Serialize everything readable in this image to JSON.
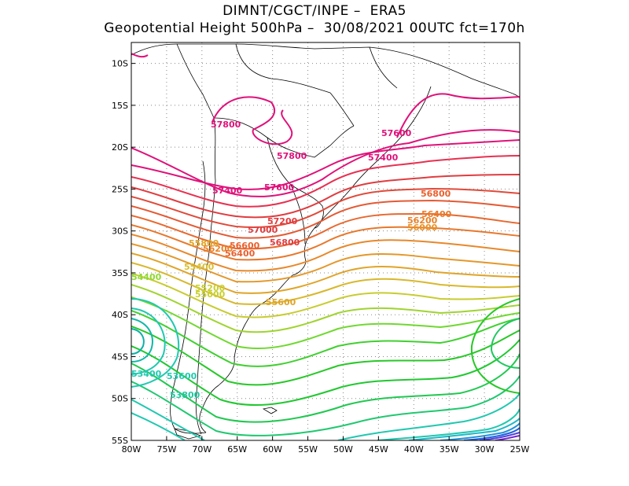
{
  "title": {
    "line1": "DIMNT/CGCT/INPE –  ERA5",
    "line2": "Geopotential Height 500hPa –  30/08/2021 00UTC fct=170h"
  },
  "axes": {
    "lon_labels": [
      "80W",
      "75W",
      "70W",
      "65W",
      "60W",
      "55W",
      "50W",
      "45W",
      "40W",
      "35W",
      "30W",
      "25W"
    ],
    "lat_labels": [
      "10S",
      "15S",
      "20S",
      "25S",
      "30S",
      "35S",
      "40S",
      "45S",
      "50S",
      "55S"
    ]
  },
  "contour_labels": [
    {
      "text": "57800",
      "color": "#e0117a"
    },
    {
      "text": "57800",
      "color": "#e0117a"
    },
    {
      "text": "57600",
      "color": "#e0117a"
    },
    {
      "text": "57600",
      "color": "#e0117a"
    },
    {
      "text": "57400",
      "color": "#e0117a"
    },
    {
      "text": "57400",
      "color": "#e0117a"
    },
    {
      "text": "57200",
      "color": "#e03c40"
    },
    {
      "text": "57000",
      "color": "#e03c40"
    },
    {
      "text": "56800",
      "color": "#e03c40"
    },
    {
      "text": "56800",
      "color": "#e8602e"
    },
    {
      "text": "56600",
      "color": "#e8602e"
    },
    {
      "text": "56400",
      "color": "#e8602e"
    },
    {
      "text": "56400",
      "color": "#e87a2a"
    },
    {
      "text": "56200",
      "color": "#e8822a"
    },
    {
      "text": "56200",
      "color": "#e8822a"
    },
    {
      "text": "56000",
      "color": "#e8922a"
    },
    {
      "text": "55800",
      "color": "#e0a428"
    },
    {
      "text": "55600",
      "color": "#e0a428"
    },
    {
      "text": "55400",
      "color": "#d8c030"
    },
    {
      "text": "55200",
      "color": "#c8d030"
    },
    {
      "text": "55000",
      "color": "#c8d030"
    },
    {
      "text": "54400",
      "color": "#90d830"
    },
    {
      "text": "53600",
      "color": "#20c8b0"
    },
    {
      "text": "53400",
      "color": "#20c8b0"
    },
    {
      "text": "53800",
      "color": "#20c8a0"
    }
  ],
  "colors": {
    "pink": "#e0117a",
    "red": "#e03c40",
    "orange": "#e8822a",
    "yellow": "#d8c030",
    "green": "#28c828",
    "teal": "#20c8b0",
    "blue": "#2060e0",
    "purple": "#7020d0"
  }
}
